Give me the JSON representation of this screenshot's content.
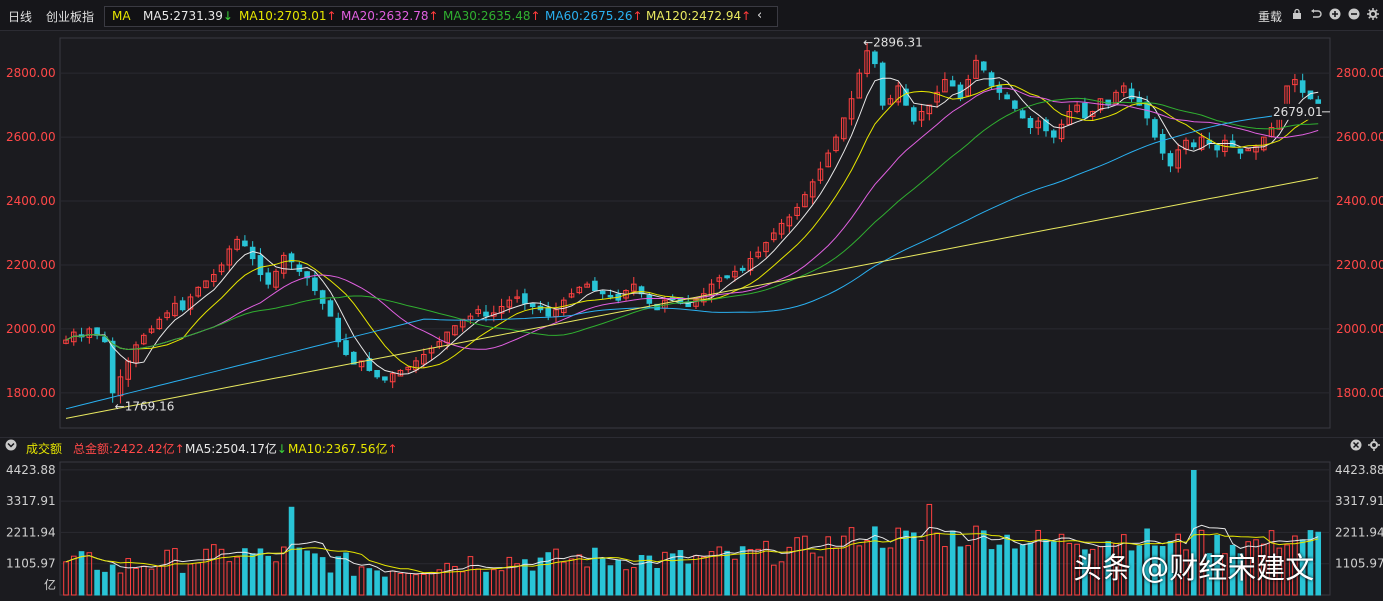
{
  "header": {
    "period": "日线",
    "index_name": "创业板指",
    "ma_label": "MA",
    "ma_items": [
      {
        "label": "MA5:2731.39",
        "arrow": "↓",
        "color": "#e8e8e8",
        "arrow_color": "#3ad23a"
      },
      {
        "label": "MA10:2703.01",
        "arrow": "↑",
        "color": "#e6e600",
        "arrow_color": "#ff3b3b"
      },
      {
        "label": "MA20:2632.78",
        "arrow": "↑",
        "color": "#e060e0",
        "arrow_color": "#ff3b3b"
      },
      {
        "label": "MA30:2635.48",
        "arrow": "↑",
        "color": "#30b030",
        "arrow_color": "#ff3b3b"
      },
      {
        "label": "MA60:2675.26",
        "arrow": "↑",
        "color": "#2ab0f0",
        "arrow_color": "#ff3b3b"
      },
      {
        "label": "MA120:2472.94",
        "arrow": "↑",
        "color": "#e8e860",
        "arrow_color": "#ff3b3b"
      }
    ],
    "collapse_icon": "chevron-left-icon",
    "right_label": "重载",
    "right_icons": [
      "lock-icon",
      "undo-icon",
      "zoom-in-icon",
      "zoom-out-icon"
    ]
  },
  "price_axis": {
    "ticks": [
      "2800.00",
      "2600.00",
      "2400.00",
      "2200.00",
      "2000.00",
      "1800.00"
    ],
    "values": [
      2800,
      2600,
      2400,
      2200,
      2000,
      1800
    ],
    "range": [
      1690,
      2910
    ]
  },
  "annotations": {
    "high": "←2896.31",
    "low": "←1769.16",
    "current": "2679.01"
  },
  "volume_header": {
    "title": "成交额",
    "total": "总金额:2422.42亿",
    "total_arrow": "↑",
    "ma5": "MA5:2504.17亿",
    "ma5_arrow": "↓",
    "ma10": "MA10:2367.56亿",
    "ma10_arrow": "↑",
    "close_icon": "close-icon",
    "settings_icon": "gear-icon"
  },
  "volume_axis": {
    "ticks": [
      "4423.88",
      "3317.91",
      "2211.94",
      "1105.97"
    ],
    "values": [
      4423.88,
      3317.91,
      2211.94,
      1105.97
    ],
    "unit": "亿",
    "range": [
      0,
      4700
    ]
  },
  "colors": {
    "up": "#ff4040",
    "down": "#29c4d6",
    "axis_text": "#ff4848",
    "grid": "#2a2a30"
  },
  "watermark": "头条 @财经宋建文",
  "chart_data": {
    "type": "candlestick",
    "ohlc_waypoints_close": [
      1965,
      1990,
      1975,
      2000,
      1980,
      1960,
      1800,
      1850,
      1900,
      1950,
      1980,
      2000,
      2030,
      2050,
      2080,
      2060,
      2100,
      2130,
      2150,
      2170,
      2200,
      2250,
      2280,
      2260,
      2220,
      2170,
      2140,
      2180,
      2230,
      2210,
      2180,
      2160,
      2120,
      2080,
      2040,
      1960,
      1920,
      1890,
      1900,
      1870,
      1850,
      1840,
      1860,
      1870,
      1880,
      1900,
      1920,
      1940,
      1960,
      1990,
      2010,
      2030,
      2040,
      2060,
      2040,
      2050,
      2070,
      2090,
      2100,
      2080,
      2070,
      2060,
      2040,
      2060,
      2090,
      2110,
      2130,
      2140,
      2120,
      2110,
      2100,
      2090,
      2120,
      2140,
      2110,
      2080,
      2060,
      2090,
      2100,
      2080,
      2070,
      2090,
      2110,
      2140,
      2160,
      2170,
      2180,
      2190,
      2220,
      2240,
      2270,
      2300,
      2330,
      2350,
      2380,
      2420,
      2460,
      2500,
      2550,
      2600,
      2660,
      2720,
      2800,
      2870,
      2830,
      2700,
      2720,
      2760,
      2700,
      2650,
      2680,
      2700,
      2740,
      2780,
      2760,
      2720,
      2780,
      2840,
      2810,
      2760,
      2740,
      2720,
      2690,
      2660,
      2630,
      2650,
      2620,
      2600,
      2640,
      2680,
      2700,
      2660,
      2680,
      2720,
      2700,
      2740,
      2760,
      2720,
      2700,
      2660,
      2600,
      2550,
      2510,
      2560,
      2590,
      2570,
      2600,
      2580,
      2560,
      2590,
      2570,
      2550,
      2560,
      2570,
      2600,
      2630,
      2680,
      2760,
      2780,
      2740,
      2720,
      2700
    ],
    "high": 2896.31,
    "low": 1769.16,
    "last": 2679.01,
    "ma": {
      "MA5": 2731.39,
      "MA10": 2703.01,
      "MA20": 2632.78,
      "MA30": 2635.48,
      "MA60": 2675.26,
      "MA120": 2472.94
    },
    "volume_total": 2422.42,
    "volume_ma5": 2504.17,
    "volume_ma10": 2367.56
  }
}
